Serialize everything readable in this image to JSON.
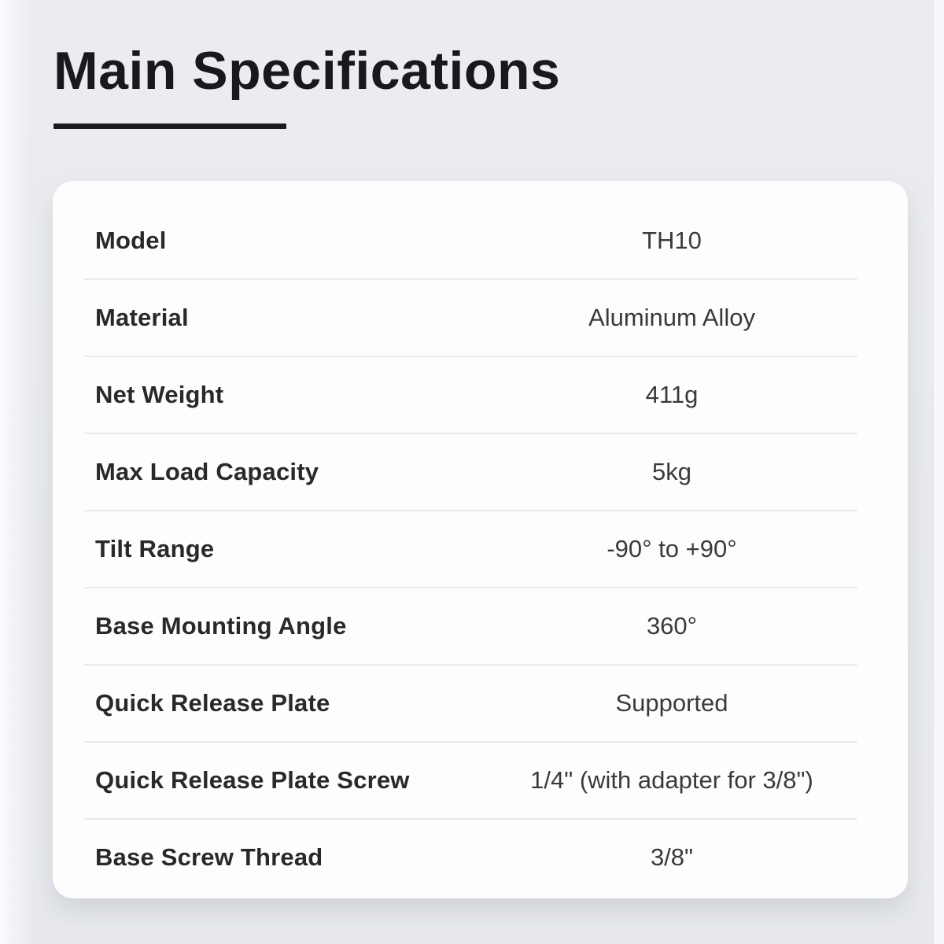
{
  "header": {
    "title": "Main Specifications"
  },
  "table": {
    "rows": [
      {
        "label": "Model",
        "value": "TH10"
      },
      {
        "label": "Material",
        "value": "Aluminum Alloy"
      },
      {
        "label": "Net Weight",
        "value": "411g"
      },
      {
        "label": "Max Load Capacity",
        "value": "5kg"
      },
      {
        "label": "Tilt Range",
        "value": "-90° to +90°"
      },
      {
        "label": "Base Mounting Angle",
        "value": "360°"
      },
      {
        "label": "Quick Release Plate",
        "value": "Supported"
      },
      {
        "label": "Quick Release Plate Screw",
        "value": "1/4\" (with adapter for 3/8\")"
      },
      {
        "label": "Base Screw Thread",
        "value": "3/8\""
      }
    ]
  },
  "colors": {
    "page_background": "#e9ebee",
    "card_background": "#fdfdfe",
    "title_text": "#19191c",
    "label_text": "#29292c",
    "value_text": "#3a3a3e",
    "divider": "#e9e9eb"
  }
}
